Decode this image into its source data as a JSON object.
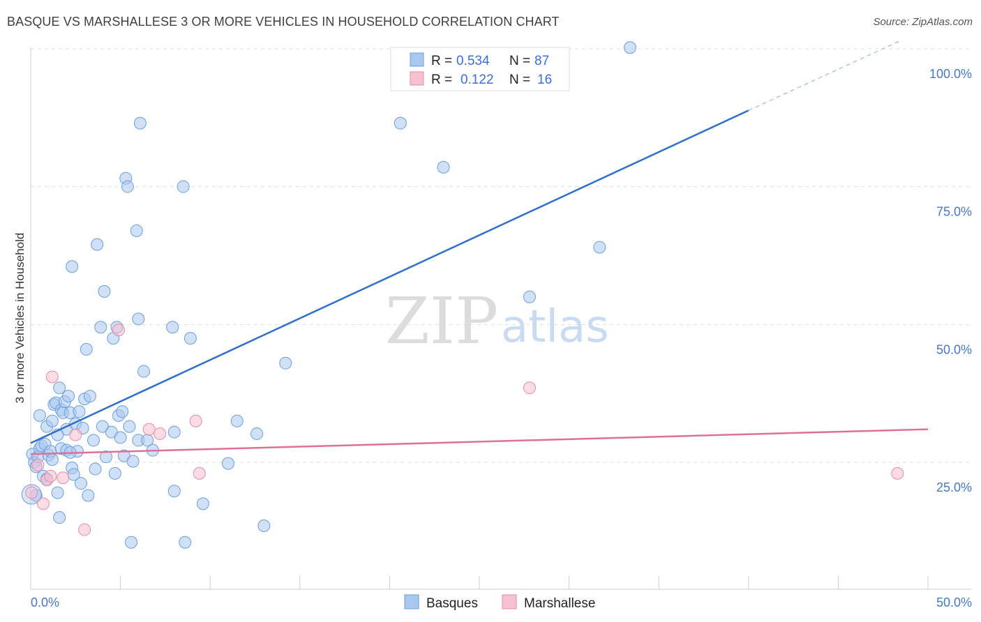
{
  "header": {
    "title": "BASQUE VS MARSHALLESE 3 OR MORE VEHICLES IN HOUSEHOLD CORRELATION CHART",
    "source": "Source: ZipAtlas.com"
  },
  "watermark": {
    "zip": "ZIP",
    "atlas": "atlas"
  },
  "colors": {
    "basques_fill": "#a9c8f0",
    "basques_stroke": "#6a9ee0",
    "basques_line": "#2f6fcc",
    "marshallese_fill": "#f7c0d0",
    "marshallese_stroke": "#e88aa8",
    "marshallese_line": "#e06f98",
    "tick_color": "#4477cc"
  },
  "legend": {
    "rows": [
      {
        "r_label": "R =",
        "r_value": "0.534",
        "n_label": "N =",
        "n_value": "87"
      },
      {
        "r_label": "R =",
        "r_value": "0.122",
        "n_label": "N =",
        "n_value": "16"
      }
    ]
  },
  "chart_data": {
    "type": "scatter",
    "title": "BASQUE VS MARSHALLESE 3 OR MORE VEHICLES IN HOUSEHOLD CORRELATION CHART",
    "xlabel": "",
    "ylabel": "3 or more Vehicles in Household",
    "xlim": [
      0,
      50
    ],
    "ylim": [
      2,
      102
    ],
    "x_tick_labels": [
      {
        "value": 0,
        "label": "0.0%"
      },
      {
        "value": 50,
        "label": "50.0%"
      }
    ],
    "y_tick_labels": [
      {
        "value": 25,
        "label": "25.0%"
      },
      {
        "value": 50,
        "label": "50.0%"
      },
      {
        "value": 75,
        "label": "75.0%"
      },
      {
        "value": 100,
        "label": "100.0%"
      }
    ],
    "grid_y": [
      25,
      50,
      75,
      100
    ],
    "legend_position": "top-center",
    "series": [
      {
        "name": "Basques",
        "R": 0.534,
        "N": 87,
        "trend": {
          "x0": 0,
          "y0": 28.5,
          "x1": 40,
          "y1": 88.8,
          "dash_to_x": 48.5,
          "dash_to_y": 101.5
        },
        "points": [
          [
            0.1,
            26.5
          ],
          [
            0.2,
            25.0
          ],
          [
            0.3,
            24.2
          ],
          [
            0.4,
            26.0
          ],
          [
            0.5,
            27.5
          ],
          [
            0.5,
            33.5
          ],
          [
            0.6,
            28.0
          ],
          [
            0.7,
            22.5
          ],
          [
            0.8,
            28.3
          ],
          [
            0.9,
            31.5
          ],
          [
            1.0,
            26.3
          ],
          [
            1.1,
            27.0
          ],
          [
            1.2,
            32.5
          ],
          [
            1.2,
            25.5
          ],
          [
            1.3,
            35.5
          ],
          [
            1.4,
            35.8
          ],
          [
            1.5,
            19.5
          ],
          [
            1.6,
            15.0
          ],
          [
            1.6,
            38.5
          ],
          [
            1.7,
            34.5
          ],
          [
            1.7,
            27.5
          ],
          [
            1.8,
            34.0
          ],
          [
            1.9,
            36.0
          ],
          [
            2.0,
            31.0
          ],
          [
            2.0,
            27.2
          ],
          [
            2.1,
            37.0
          ],
          [
            2.2,
            34.0
          ],
          [
            2.3,
            60.5
          ],
          [
            2.3,
            24.0
          ],
          [
            2.4,
            22.8
          ],
          [
            2.5,
            32.0
          ],
          [
            2.6,
            27.0
          ],
          [
            2.7,
            34.2
          ],
          [
            2.8,
            21.2
          ],
          [
            2.9,
            31.2
          ],
          [
            3.0,
            36.5
          ],
          [
            3.1,
            45.5
          ],
          [
            3.2,
            19.0
          ],
          [
            3.3,
            37.0
          ],
          [
            3.6,
            23.8
          ],
          [
            3.7,
            64.5
          ],
          [
            3.9,
            49.5
          ],
          [
            4.0,
            31.5
          ],
          [
            4.1,
            56.0
          ],
          [
            4.2,
            26.0
          ],
          [
            4.5,
            30.5
          ],
          [
            4.6,
            47.5
          ],
          [
            4.7,
            23.0
          ],
          [
            4.8,
            49.5
          ],
          [
            4.9,
            33.5
          ],
          [
            5.0,
            29.5
          ],
          [
            5.1,
            34.2
          ],
          [
            5.2,
            26.2
          ],
          [
            5.3,
            76.5
          ],
          [
            5.4,
            75.0
          ],
          [
            5.5,
            31.5
          ],
          [
            5.6,
            10.5
          ],
          [
            5.7,
            25.2
          ],
          [
            5.9,
            67.0
          ],
          [
            6.0,
            29.0
          ],
          [
            6.0,
            51.0
          ],
          [
            6.1,
            86.5
          ],
          [
            6.3,
            41.5
          ],
          [
            6.5,
            29.0
          ],
          [
            6.8,
            27.2
          ],
          [
            7.9,
            49.5
          ],
          [
            8.0,
            19.8
          ],
          [
            8.0,
            30.5
          ],
          [
            8.5,
            75.0
          ],
          [
            8.6,
            10.5
          ],
          [
            8.9,
            47.5
          ],
          [
            9.6,
            17.5
          ],
          [
            11.0,
            24.8
          ],
          [
            11.5,
            32.5
          ],
          [
            12.6,
            30.2
          ],
          [
            13.0,
            13.5
          ],
          [
            14.2,
            43.0
          ],
          [
            20.6,
            86.5
          ],
          [
            23.0,
            78.5
          ],
          [
            27.8,
            55.0
          ],
          [
            31.7,
            64.0
          ],
          [
            33.4,
            100.2
          ],
          [
            0.3,
            19.0
          ],
          [
            0.9,
            22.0
          ],
          [
            1.5,
            30.0
          ],
          [
            2.2,
            26.8
          ],
          [
            3.5,
            29.0
          ]
        ]
      },
      {
        "name": "Marshallese",
        "R": 0.122,
        "N": 16,
        "trend": {
          "x0": 0,
          "y0": 26.5,
          "x1": 50,
          "y1": 31.0
        },
        "points": [
          [
            0.05,
            19.5
          ],
          [
            0.4,
            24.5
          ],
          [
            0.7,
            17.5
          ],
          [
            0.9,
            21.8
          ],
          [
            1.1,
            22.5
          ],
          [
            1.2,
            40.5
          ],
          [
            1.8,
            22.2
          ],
          [
            2.5,
            30.0
          ],
          [
            3.0,
            12.8
          ],
          [
            4.9,
            49.0
          ],
          [
            6.6,
            31.0
          ],
          [
            7.2,
            30.2
          ],
          [
            9.2,
            32.5
          ],
          [
            9.4,
            23.0
          ],
          [
            27.8,
            38.5
          ],
          [
            48.3,
            23.0
          ]
        ]
      }
    ]
  },
  "bottom_legend": {
    "items": [
      {
        "label": "Basques"
      },
      {
        "label": "Marshallese"
      }
    ]
  }
}
